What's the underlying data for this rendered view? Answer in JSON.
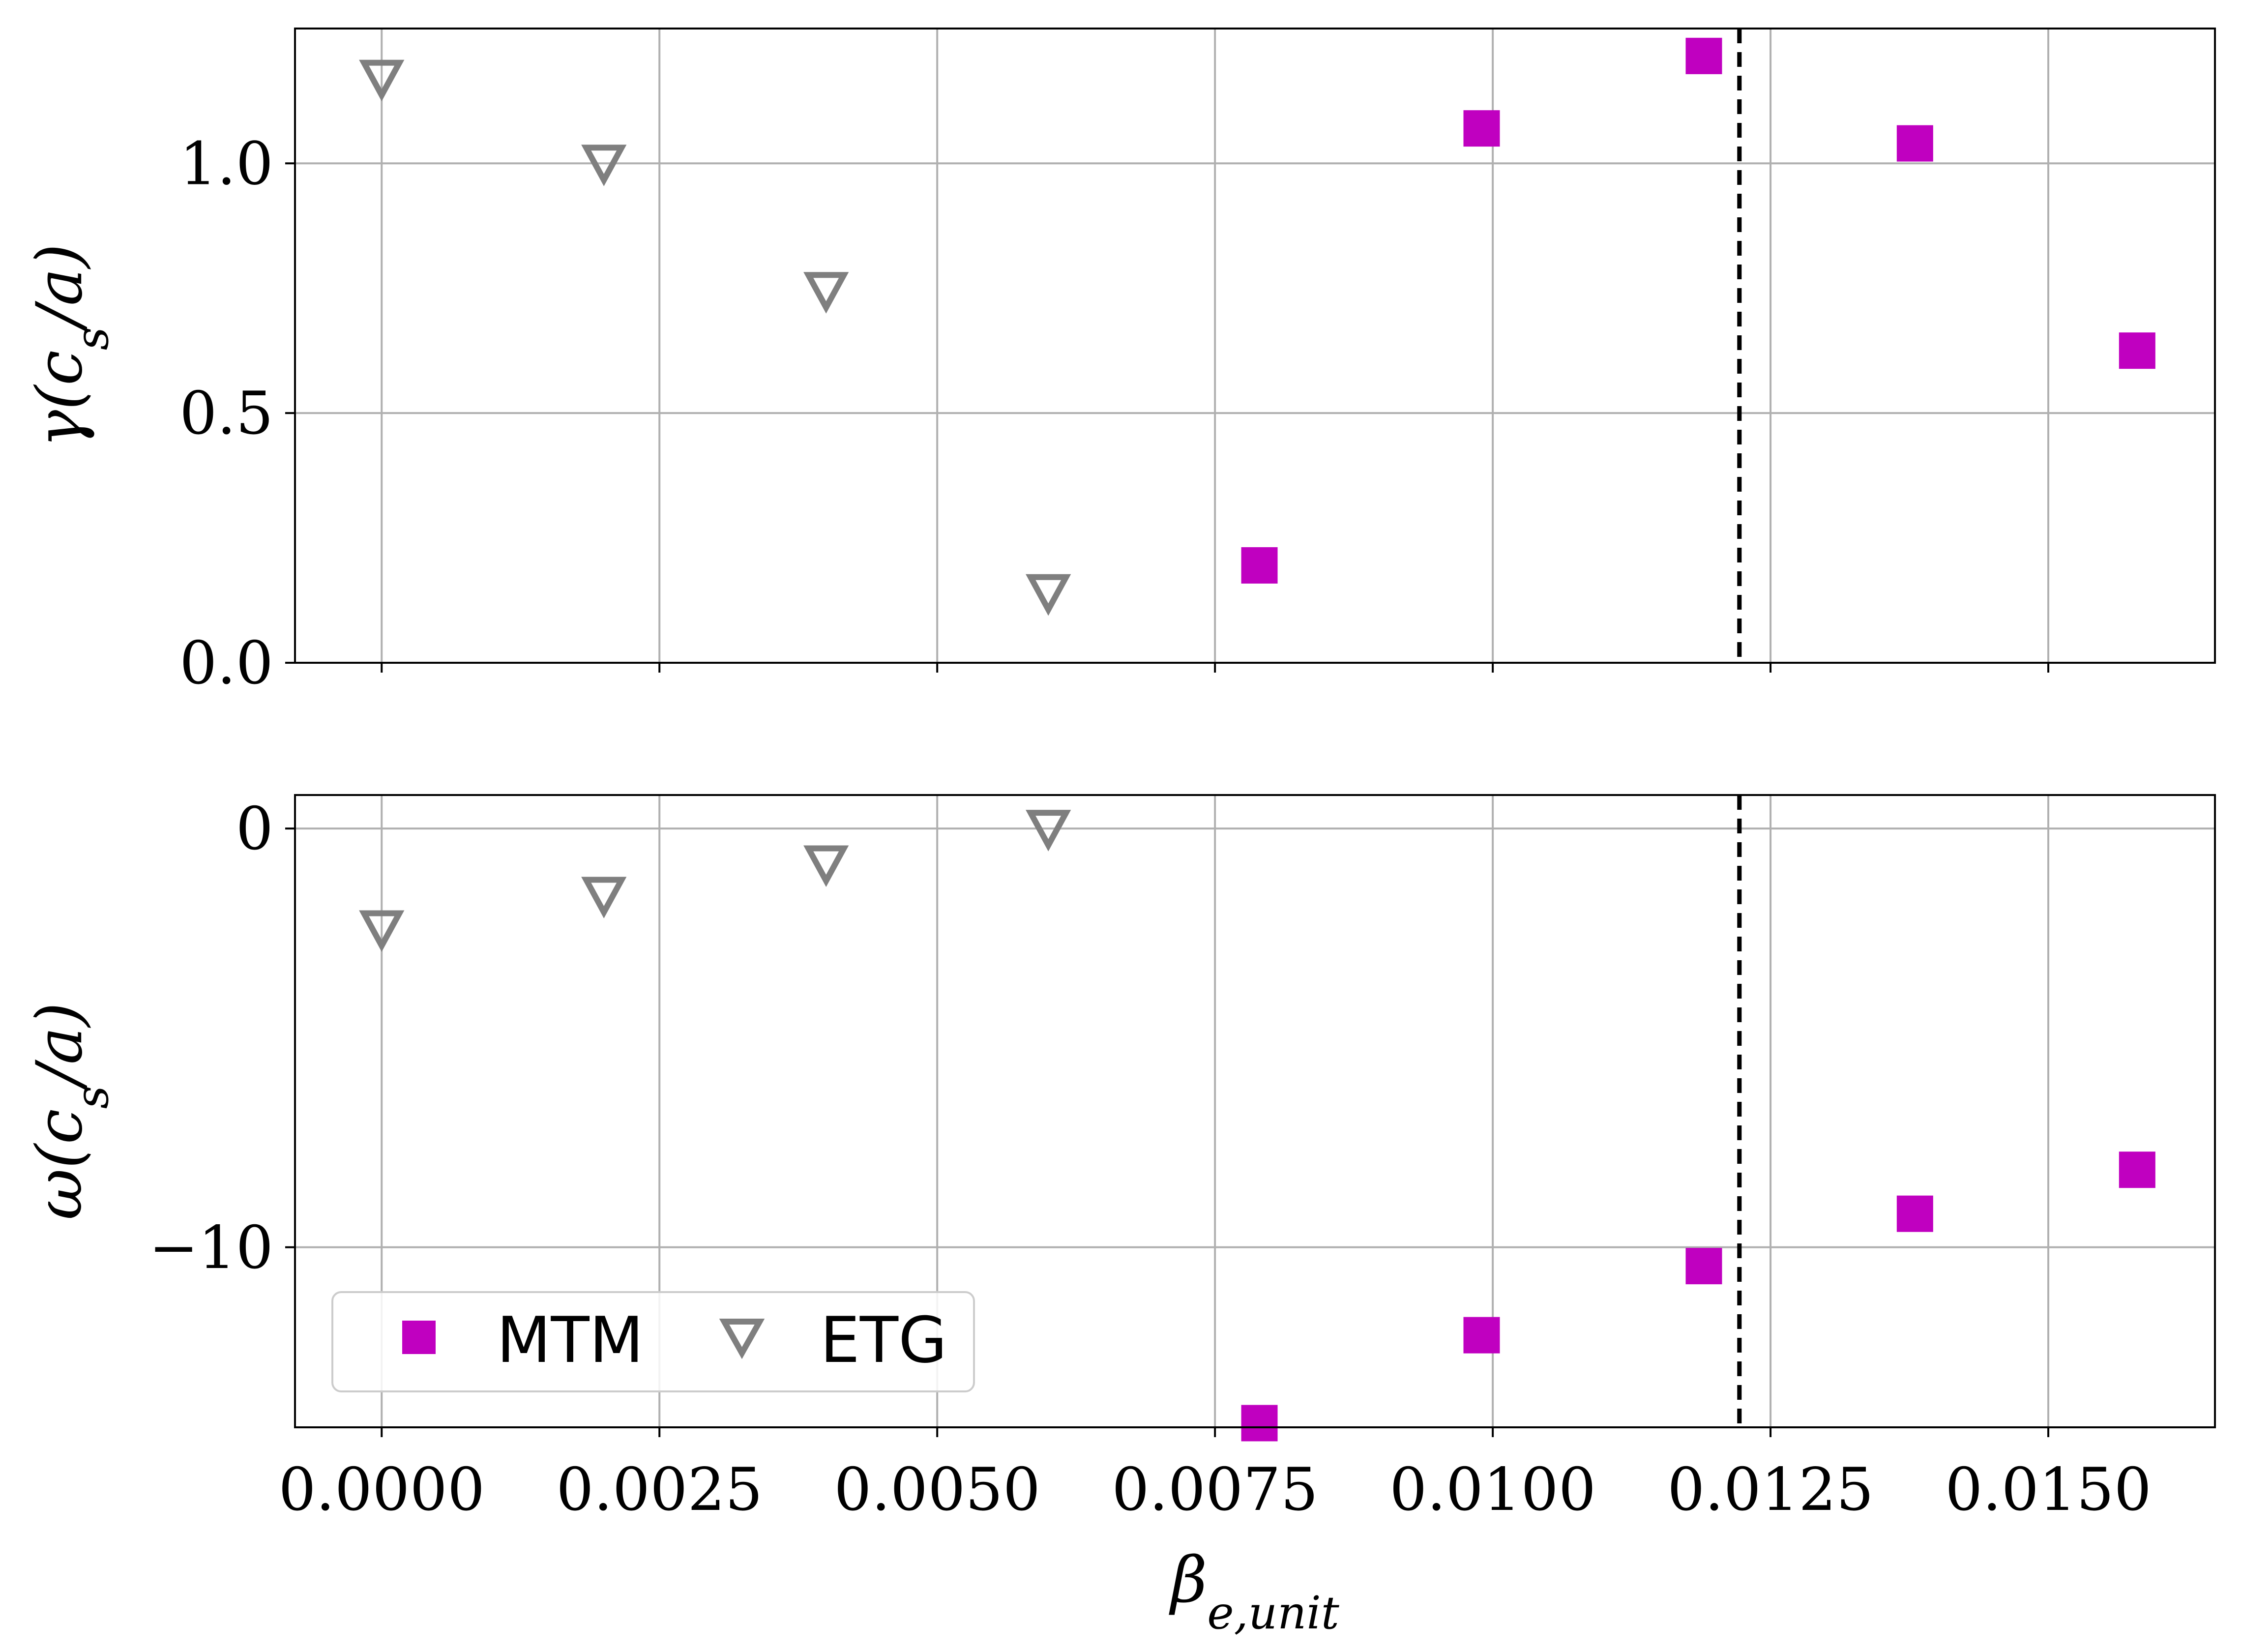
{
  "colors": {
    "mtm": "#c000c0",
    "etg": "#7f7f7f",
    "grid": "#b0b0b0",
    "vline": "#000000"
  },
  "legend": {
    "placement": "lower-left",
    "items": [
      "MTM",
      "ETG"
    ]
  },
  "chart_data": [
    {
      "type": "scatter",
      "ylabel": "γ(c_s/a)",
      "xlim": [
        -0.00078,
        0.0165
      ],
      "ylim": [
        0,
        1.27
      ],
      "grid": true,
      "xticks": [
        0,
        0.0025,
        0.005,
        0.0075,
        0.01,
        0.0125,
        0.015
      ],
      "xticklabels_visible": false,
      "yticks": [
        0,
        0.5,
        1
      ],
      "yticklabels": [
        "0.0",
        "0.5",
        "1.0"
      ],
      "vline_x": 0.01222,
      "series": [
        {
          "name": "MTM",
          "marker": "square",
          "x": [
            0.0079,
            0.0099,
            0.0119,
            0.0138,
            0.0158
          ],
          "y": [
            0.195,
            1.07,
            1.215,
            1.04,
            0.625
          ]
        },
        {
          "name": "ETG",
          "marker": "triangle-down",
          "x": [
            0.0,
            0.002,
            0.004,
            0.006
          ],
          "y": [
            1.17,
            1.0,
            0.745,
            0.14
          ]
        }
      ]
    },
    {
      "type": "scatter",
      "ylabel": "ω(c_s/a)",
      "xlabel": "β_e,unit",
      "xlim": [
        -0.00078,
        0.0165
      ],
      "ylim": [
        -14.3,
        0.8
      ],
      "grid": true,
      "xticks": [
        0,
        0.0025,
        0.005,
        0.0075,
        0.01,
        0.0125,
        0.015
      ],
      "xticklabels": [
        "0.0000",
        "0.0025",
        "0.0050",
        "0.0075",
        "0.0100",
        "0.0125",
        "0.0150"
      ],
      "yticks": [
        0,
        -10
      ],
      "yticklabels": [
        "0",
        "−10"
      ],
      "vline_x": 0.01222,
      "series": [
        {
          "name": "MTM",
          "marker": "square",
          "x": [
            0.0079,
            0.0099,
            0.0119,
            0.0138,
            0.0158
          ],
          "y": [
            -14.2,
            -12.1,
            -10.45,
            -9.2,
            -8.15
          ]
        },
        {
          "name": "ETG",
          "marker": "triangle-down",
          "x": [
            0.0,
            0.002,
            0.004,
            0.006
          ],
          "y": [
            -2.4,
            -1.6,
            -0.85,
            0.0
          ]
        }
      ]
    }
  ]
}
